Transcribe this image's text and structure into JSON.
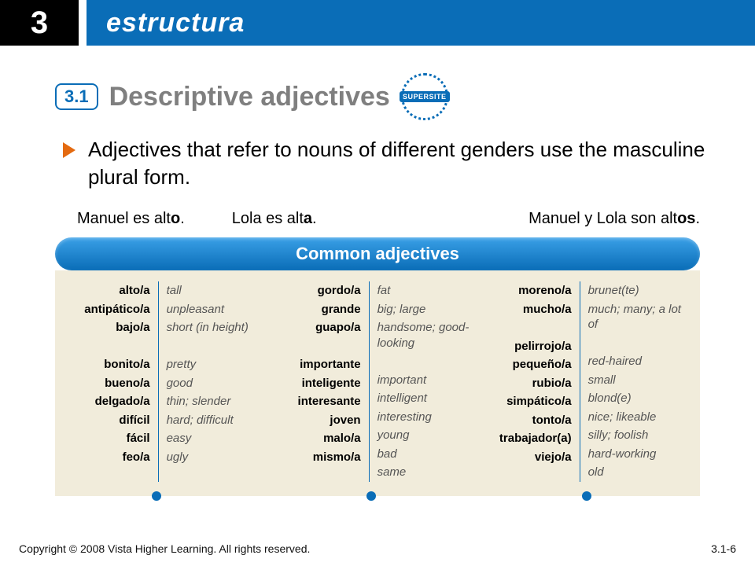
{
  "header": {
    "chapter": "3",
    "title": "estructura",
    "section_badge": "3.1",
    "section_title": "Descriptive adjectives",
    "supersite_label": "SUPERSITE"
  },
  "bullet": "Adjectives that refer to nouns of different genders use the masculine plural form.",
  "examples": {
    "ex1_pre": "Manuel es alt",
    "ex1_bold": "o",
    "ex1_post": ".",
    "ex2_pre": "Lola es alt",
    "ex2_bold": "a",
    "ex2_post": ".",
    "ex3_pre": "Manuel y Lola son alt",
    "ex3_bold": "os",
    "ex3_post": "."
  },
  "pill_title": "Common adjectives",
  "columns": [
    {
      "es": [
        "alto/a",
        "antipático/a",
        "bajo/a",
        "",
        "bonito/a",
        "bueno/a",
        "delgado/a",
        "difícil",
        "fácil",
        "feo/a"
      ],
      "en": [
        "tall",
        "unpleasant",
        "short (in height)",
        "",
        "pretty",
        "good",
        "thin; slender",
        "hard; difficult",
        "easy",
        "ugly"
      ]
    },
    {
      "es": [
        "gordo/a",
        "grande",
        "guapo/a",
        "",
        "importante",
        "inteligente",
        "interesante",
        "joven",
        "malo/a",
        "mismo/a"
      ],
      "en": [
        "fat",
        "big; large",
        "handsome; good-looking",
        "",
        "important",
        "intelligent",
        "interesting",
        "young",
        "bad",
        "same"
      ]
    },
    {
      "es": [
        "moreno/a",
        "mucho/a",
        "",
        "pelirrojo/a",
        "pequeño/a",
        "rubio/a",
        "simpático/a",
        "tonto/a",
        "trabajador(a)",
        "viejo/a"
      ],
      "en": [
        "brunet(te)",
        "much; many; a lot of",
        "",
        "red-haired",
        "small",
        "blond(e)",
        "nice; likeable",
        "silly; foolish",
        "hard-working",
        "old"
      ]
    }
  ],
  "footer": {
    "copyright": "Copyright © 2008 Vista Higher Learning. All rights reserved.",
    "page_ref": "3.1-6"
  },
  "colors": {
    "brand_blue": "#0a6db7",
    "accent_orange": "#e46a10",
    "panel_bg": "#f1ecdb",
    "heading_gray": "#7f7f7f"
  }
}
